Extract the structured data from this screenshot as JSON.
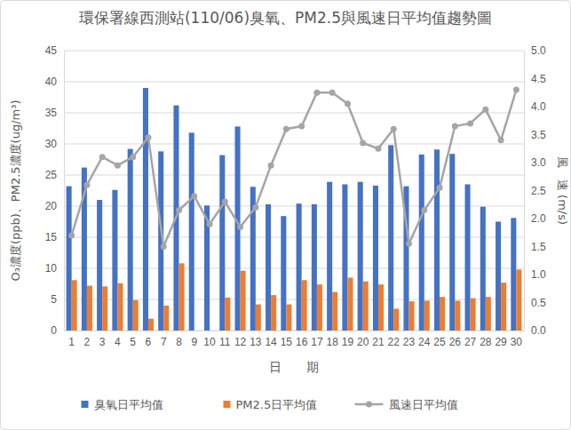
{
  "chart_data": {
    "type": "bar",
    "title": "環保署線西測站(110/06)臭氧、PM2.5與風速日平均值趨勢圖",
    "x_label": "日　　期",
    "y_label": "O₃濃度(ppb)、PM2.5濃度(ug/m³)",
    "y2_label": "風　速 (m/s)",
    "categories": [
      "1",
      "2",
      "3",
      "4",
      "5",
      "6",
      "7",
      "8",
      "9",
      "10",
      "11",
      "12",
      "13",
      "14",
      "15",
      "16",
      "17",
      "18",
      "19",
      "20",
      "21",
      "22",
      "23",
      "24",
      "25",
      "26",
      "27",
      "28",
      "29",
      "30"
    ],
    "series": [
      {
        "name": "臭氧日平均值",
        "type": "bar",
        "color": "#4472c4",
        "values": [
          23.2,
          26.2,
          21.0,
          22.6,
          29.2,
          39.0,
          28.8,
          36.2,
          31.8,
          20.1,
          28.2,
          32.8,
          23.1,
          20.3,
          18.4,
          20.4,
          20.3,
          23.9,
          23.5,
          23.9,
          23.3,
          29.8,
          23.2,
          28.3,
          29.1,
          28.4,
          23.5,
          19.9,
          17.5,
          18.1
        ]
      },
      {
        "name": "PM2.5日平均值",
        "type": "bar",
        "color": "#ed7d31",
        "values": [
          8.1,
          7.2,
          7.1,
          7.6,
          4.9,
          1.9,
          4.0,
          10.8,
          null,
          null,
          5.3,
          9.6,
          4.2,
          5.7,
          4.2,
          8.1,
          7.4,
          6.2,
          8.5,
          7.9,
          7.4,
          3.5,
          4.7,
          4.8,
          5.4,
          4.8,
          5.2,
          5.4,
          7.7,
          9.8
        ]
      },
      {
        "name": "風速日平均值",
        "type": "line",
        "axis": "y2",
        "color": "#a5a5a5",
        "marker": "circle",
        "line_style": "solid",
        "values": [
          1.7,
          2.6,
          3.1,
          2.95,
          3.1,
          3.45,
          1.5,
          2.15,
          2.4,
          1.9,
          2.3,
          1.85,
          2.2,
          2.95,
          3.6,
          3.65,
          4.25,
          4.25,
          4.05,
          3.35,
          3.25,
          3.6,
          1.55,
          2.15,
          2.55,
          3.65,
          3.7,
          3.95,
          3.4,
          4.3
        ]
      }
    ],
    "ylim": [
      0,
      45
    ],
    "yticks": [
      0,
      5,
      10,
      15,
      20,
      25,
      30,
      35,
      40,
      45
    ],
    "y2lim": [
      0,
      5
    ],
    "y2ticks": [
      {
        "value": 0,
        "label": "0.0"
      },
      0.5,
      {
        "value": 1,
        "label": "1.0"
      },
      1.5,
      {
        "value": 2,
        "label": "2.0"
      },
      2.5,
      {
        "value": 3,
        "label": "3.0"
      },
      3.5,
      {
        "value": 4,
        "label": "4.0"
      },
      4.5,
      {
        "value": 5,
        "label": "5.0"
      }
    ],
    "grid": true,
    "legend": "bottom"
  }
}
